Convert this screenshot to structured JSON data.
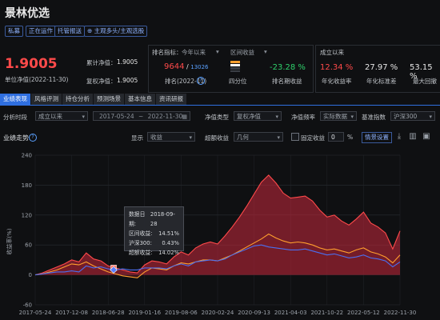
{
  "fund": {
    "name": "景林优选",
    "tags": [
      "私募",
      "正在运作",
      "托管报送"
    ],
    "watch_label": "⊕ 主观多头/主观选股",
    "nav_value": "1.9005",
    "nav_date_label": "单位净值(2022-11-30)",
    "cum_nav_label": "累计净值：",
    "cum_nav_value": "1.9005",
    "adj_nav_label": "复权净值：",
    "adj_nav_value": "1.9005"
  },
  "ranking": {
    "indicator_label": "排名指标：",
    "indicator_value": "今年以来",
    "indicator2_value": "区间收益",
    "rank_value": "9644",
    "rank_total": "13026",
    "rank_label": "排名(2022-11)",
    "quartile_label": "四分位",
    "period_return": "-23.28 %",
    "period_return_label": "排名期收益"
  },
  "since_inception": {
    "header": "成立以来",
    "annual_return": "12.34 %",
    "annual_return_label": "年化收益率",
    "annual_std": "27.97 %",
    "annual_std_label": "年化标准差",
    "max_drawdown": "53.15 %",
    "max_drawdown_label": "最大回撤"
  },
  "tabs": [
    "业绩表现",
    "风格评测",
    "持仓分析",
    "预测场景",
    "基本信息",
    "资讯研报"
  ],
  "filters": {
    "period_label": "分析时段",
    "period_value": "成立以来",
    "date_start": "2017-05-24",
    "date_sep": "~",
    "date_end": "2022-11-30",
    "nav_type_label": "净值类型",
    "nav_type_value": "复权净值",
    "nav_freq_label": "净值频率",
    "nav_freq_value": "实际数据",
    "benchmark_label": "基准指数",
    "benchmark_value": "沪深300"
  },
  "chart_header": {
    "title": "业绩走势",
    "display_label": "显示",
    "display_value": "收益",
    "excess_label": "超额收益",
    "excess_value": "几何",
    "fixed_label": "固定收益",
    "fixed_value": "0",
    "fixed_unit": "%",
    "settings_btn": "情景设置"
  },
  "tooltip": {
    "date_label": "数据日期:",
    "date_value": "2018-09-28",
    "rows": [
      {
        "label": "区间收益:",
        "value": "14.51%"
      },
      {
        "label": "沪深300:",
        "value": "0.43%"
      },
      {
        "label": "超额收益:",
        "value": "14.02%"
      }
    ]
  },
  "chart_data": {
    "type": "area",
    "ylabel": "收益率(%)",
    "ylim": [
      -60,
      240
    ],
    "yticks": [
      "240",
      "180",
      "120",
      "60",
      "0",
      "-60"
    ],
    "xticks": [
      "2017-05-24",
      "2017-12-08",
      "2018-06-28",
      "2019-01-16",
      "2019-08-06",
      "2020-02-24",
      "2020-09-13",
      "2021-04-03",
      "2021-10-22",
      "2022-05-12",
      "2022-11-30"
    ],
    "x": [
      0,
      0.02,
      0.04,
      0.06,
      0.08,
      0.1,
      0.12,
      0.14,
      0.16,
      0.18,
      0.2,
      0.22,
      0.24,
      0.26,
      0.28,
      0.3,
      0.32,
      0.34,
      0.36,
      0.38,
      0.4,
      0.42,
      0.44,
      0.46,
      0.48,
      0.5,
      0.52,
      0.54,
      0.56,
      0.58,
      0.6,
      0.62,
      0.64,
      0.66,
      0.68,
      0.7,
      0.72,
      0.74,
      0.76,
      0.78,
      0.8,
      0.82,
      0.84,
      0.86,
      0.88,
      0.9,
      0.92,
      0.94,
      0.96,
      0.98,
      1.0
    ],
    "series": [
      {
        "name": "区间收益",
        "color": "#ff4a4a",
        "values": [
          0,
          4,
          10,
          16,
          22,
          30,
          26,
          44,
          32,
          28,
          18,
          14,
          10,
          6,
          4,
          20,
          28,
          26,
          22,
          36,
          46,
          40,
          54,
          62,
          66,
          62,
          78,
          96,
          116,
          138,
          162,
          186,
          200,
          184,
          164,
          154,
          156,
          158,
          148,
          130,
          116,
          120,
          108,
          100,
          112,
          126,
          104,
          96,
          84,
          52,
          88
        ]
      },
      {
        "name": "沪深300",
        "color": "#ff9f2e",
        "values": [
          0,
          2,
          6,
          10,
          16,
          22,
          20,
          26,
          18,
          12,
          6,
          2,
          -2,
          -4,
          -6,
          6,
          14,
          12,
          10,
          18,
          24,
          22,
          26,
          30,
          30,
          28,
          34,
          40,
          48,
          56,
          64,
          72,
          82,
          74,
          68,
          64,
          66,
          64,
          60,
          54,
          50,
          52,
          48,
          44,
          50,
          54,
          46,
          42,
          36,
          24,
          40
        ]
      },
      {
        "name": "超额收益",
        "color": "#4a6ff0",
        "values": [
          0,
          2,
          4,
          6,
          6,
          8,
          6,
          18,
          14,
          16,
          12,
          10,
          12,
          10,
          10,
          14,
          14,
          14,
          12,
          18,
          22,
          18,
          26,
          28,
          30,
          28,
          32,
          40,
          46,
          52,
          58,
          60,
          56,
          54,
          52,
          50,
          50,
          52,
          48,
          44,
          40,
          42,
          38,
          34,
          36,
          40,
          34,
          32,
          28,
          16,
          26
        ]
      }
    ]
  }
}
